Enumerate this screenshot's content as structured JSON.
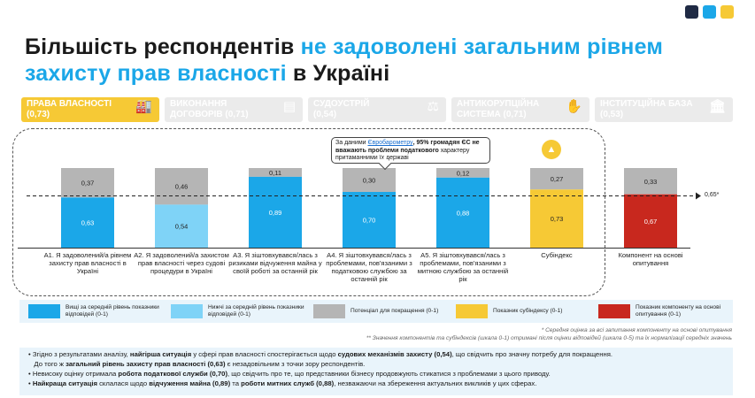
{
  "logo_colors": [
    "#1f2a44",
    "#1ba7e8",
    "#f6c935"
  ],
  "title": {
    "part1": "Більшість респондентів ",
    "part2": "не задоволені загальним рівнем захисту прав власності",
    "part3": " в Україні"
  },
  "tabs": [
    {
      "line1": "ПРАВА ВЛАСНОСТІ",
      "line2": "(0,73)",
      "icon": "factory-icon",
      "glyph": "🏭"
    },
    {
      "line1": "ВИКОНАННЯ",
      "line2": "ДОГОВОРІВ (0,71)",
      "icon": "contract-icon",
      "glyph": "▤"
    },
    {
      "line1": "СУДОУСТРІЙ",
      "line2": "(0,54)",
      "icon": "scales-icon",
      "glyph": "⚖"
    },
    {
      "line1": "АНТИКОРУПЦІЙНА",
      "line2": "СИСТЕМА (0,71)",
      "icon": "no-bribe-icon",
      "glyph": "✋"
    },
    {
      "line1": "ІНСТИТУЦІЙНА БАЗА",
      "line2": "(0,53)",
      "icon": "institution-icon",
      "glyph": "🏛"
    }
  ],
  "callout": {
    "prefix": "За даними ",
    "link": "Євробарометру",
    "bold": ", 95% громадян ЄС не вважають проблеми податкового",
    "rest": " характеру притаманними їх державі"
  },
  "reference": {
    "label": "0,65*",
    "value": 0.65
  },
  "chart_data": {
    "type": "bar",
    "stacked": true,
    "ylim": [
      0,
      1
    ],
    "reference_line": 0.65,
    "categories": [
      "А1. Я задоволений/а рівнем захисту прав власності в Україні",
      "А2. Я задоволений/а захистом прав власності через судові процедури в Україні",
      "А3. Я зіштовхувався/лась з ризиками відчуження майна у своїй роботі за останній рік",
      "А4. Я зіштовхувався/лась з проблемами, пов'язаними з податковою службою за останній рік",
      "А5. Я зіштовхувався/лась з проблемами, пов'язаними з митною службою за останній рік",
      "Субіндекс",
      "Компонент на основі опитування"
    ],
    "values": [
      0.63,
      0.54,
      0.89,
      0.7,
      0.88,
      0.73,
      0.67
    ],
    "potential": [
      0.37,
      0.46,
      0.11,
      0.3,
      0.12,
      0.27,
      0.33
    ],
    "value_labels": [
      "0,63",
      "0,54",
      "0,89",
      "0,70",
      "0,88",
      "0,73",
      "0,67"
    ],
    "potential_labels": [
      "0,37",
      "0,46",
      "0,11",
      "0,30",
      "0,12",
      "0,27",
      "0,33"
    ],
    "bar_colors": [
      "#1ba7e8",
      "#7fd3f7",
      "#1ba7e8",
      "#1ba7e8",
      "#1ba7e8",
      "#f6c935",
      "#c8281e"
    ],
    "potential_color": "#b5b5b5"
  },
  "legend": [
    {
      "label": "Вищі за середній рівень показники відповідей (0-1)",
      "color": "#1ba7e8"
    },
    {
      "label": "Нижчі за середній рівень показники відповідей (0-1)",
      "color": "#7fd3f7"
    },
    {
      "label": "Потенціал для покращення (0-1)",
      "color": "#b5b5b5"
    },
    {
      "label": "Показник субіндексу (0-1)",
      "color": "#f6c935"
    },
    {
      "label": "Показник компоненту на основі опитування (0-1)",
      "color": "#c8281e"
    }
  ],
  "notes": {
    "n1": "* Середня оцінка за всі запитання компоненту на основі опитування",
    "n2": "** Значення компонентів та субіндексів (шкала 0-1) отримані після оцінки відповідей (шкала 0-5) та їх нормалізації середніх значень"
  },
  "summary": [
    {
      "a": "Згідно з результатами аналізу, ",
      "b": "найгірша ситуація",
      "c": " у сфері прав власності спостерігається щодо ",
      "d": "судових механізмів захисту (0,54)",
      "e": ", що свідчить про значну потребу для покращення."
    },
    {
      "a": "До того ж ",
      "b": "загальний рівень захисту прав власності (0,63)",
      "c": " є незадовільним з точки зору респондентів.",
      "d": "",
      "e": ""
    },
    {
      "a": "Невисоку оцінку отримала ",
      "b": "робота податкової служби (0,70)",
      "c": ", що свідчить про те, що представники бізнесу продовжують стикатися з проблемами з цього приводу.",
      "d": "",
      "e": ""
    },
    {
      "a": "",
      "b": "Найкраща ситуація",
      "c": " склалася щодо ",
      "d": "відчуження майна (0,89)",
      "e": " та ",
      "f": "роботи митних служб (0,88)",
      "g": ", незважаючи на збереження актуальних викликів у цих сферах."
    }
  ]
}
